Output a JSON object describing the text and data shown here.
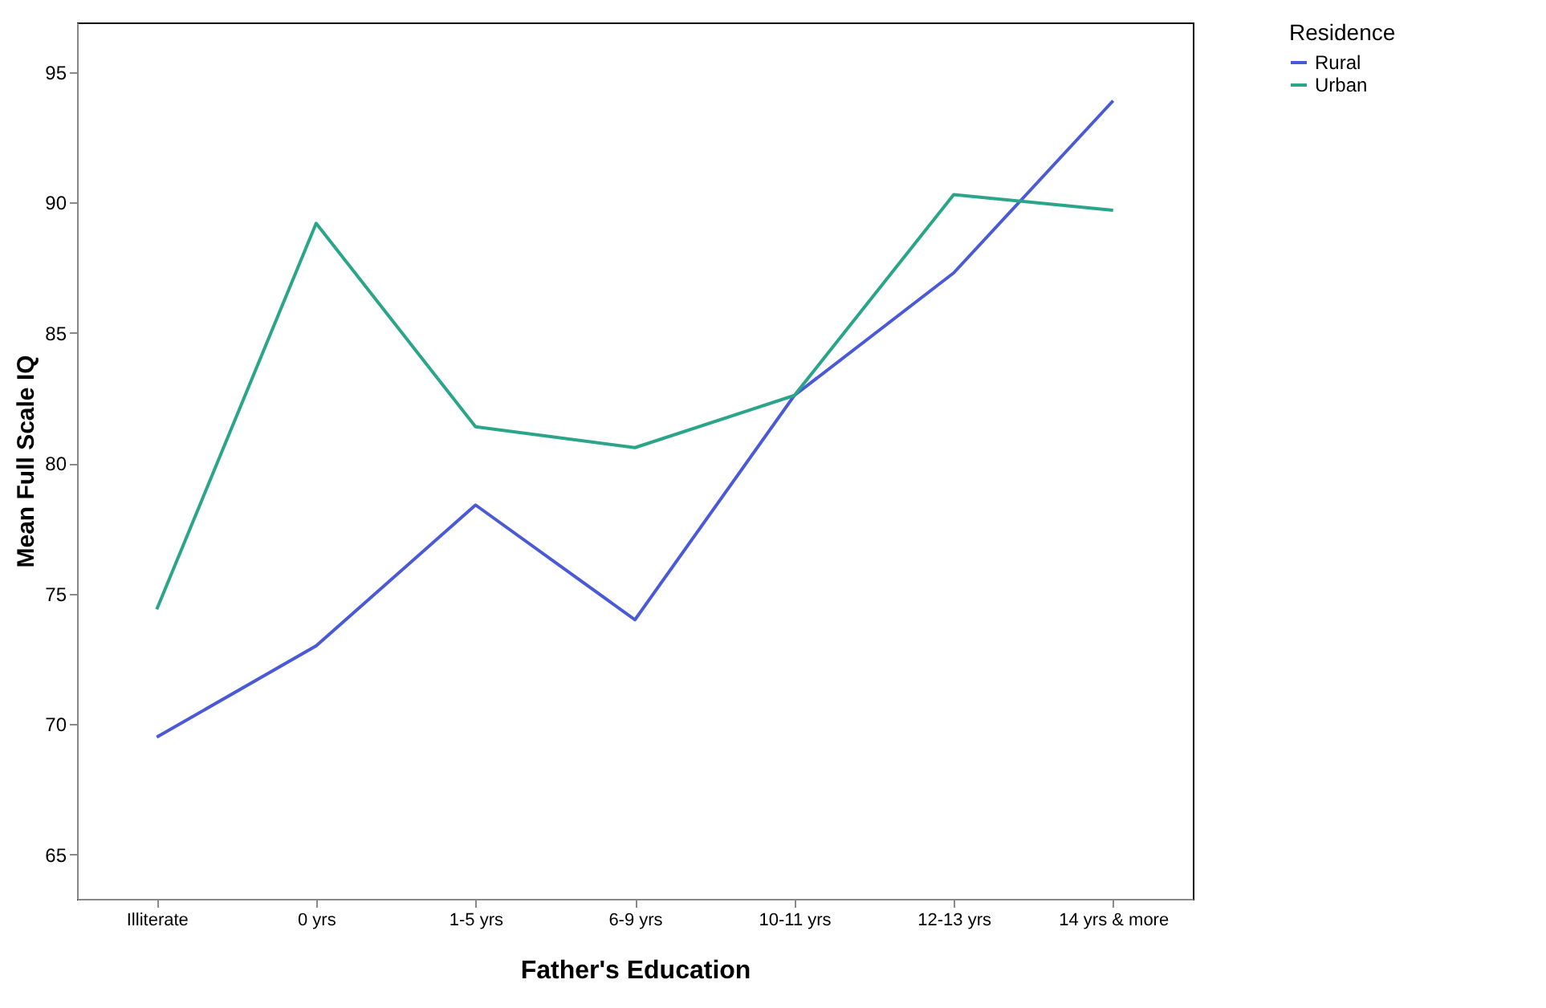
{
  "chart_data": {
    "type": "line",
    "xlabel": "Father's Education",
    "ylabel": "Mean Full Scale IQ",
    "legend_title": "Residence",
    "legend": "top right",
    "categories": [
      "Illiterate",
      "0 yrs",
      "1-5 yrs",
      "6-9 yrs",
      "10-11 yrs",
      "12-13 yrs",
      "14 yrs & more"
    ],
    "ylim": [
      63.3,
      96.9
    ],
    "yticks": [
      65,
      70,
      75,
      80,
      85,
      90,
      95
    ],
    "grid": false,
    "marker": "none",
    "line_style": "solid",
    "series": [
      {
        "name": "Rural",
        "color": "#4a5ad6",
        "values": [
          69.5,
          73.0,
          78.4,
          74.0,
          82.6,
          87.3,
          93.9
        ]
      },
      {
        "name": "Urban",
        "color": "#2aa58a",
        "values": [
          74.4,
          89.2,
          81.4,
          80.6,
          82.6,
          90.3,
          89.7
        ]
      }
    ]
  }
}
